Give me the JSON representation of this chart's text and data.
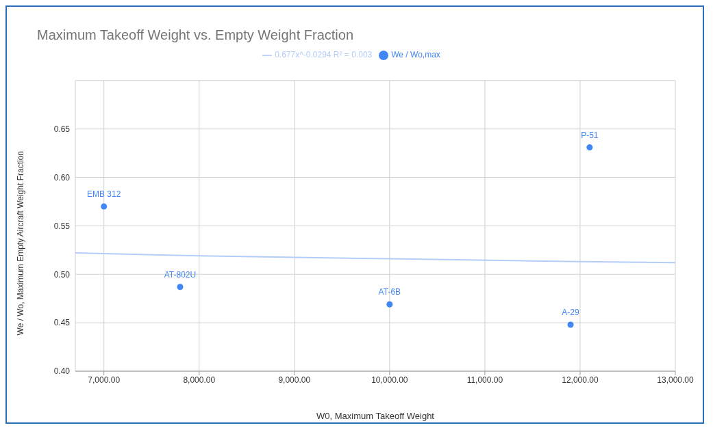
{
  "chart_data": {
    "type": "scatter",
    "title": "Maximum Takeoff Weight vs. Empty Weight Fraction",
    "xlabel": "W0, Maximum Takeoff Weight",
    "ylabel": "We / Wo, Maximum Empty Aircraft Weight Fraction",
    "xlim": [
      6700,
      13000
    ],
    "xticks": [
      {
        "value": 7000,
        "label": "7,000.00"
      },
      {
        "value": 8000,
        "label": "8,000.00"
      },
      {
        "value": 9000,
        "label": "9,000.00"
      },
      {
        "value": 10000,
        "label": "10,000.00"
      },
      {
        "value": 11000,
        "label": "11,000.00"
      },
      {
        "value": 12000,
        "label": "12,000.00"
      },
      {
        "value": 13000,
        "label": "13,000.00"
      }
    ],
    "ylim": [
      0.4,
      0.7
    ],
    "yticks": [
      {
        "value": 0.4,
        "label": "0.40"
      },
      {
        "value": 0.45,
        "label": "0.45"
      },
      {
        "value": 0.5,
        "label": "0.50"
      },
      {
        "value": 0.55,
        "label": "0.55"
      },
      {
        "value": 0.6,
        "label": "0.60"
      },
      {
        "value": 0.65,
        "label": "0.65"
      },
      {
        "value": 0.7,
        "label": null
      }
    ],
    "grid": true,
    "legend": "top",
    "series": [
      {
        "name": "We / Wo,max",
        "marker": "circle",
        "color": "#4285f4",
        "x": [
          7000,
          7800,
          10000,
          11900,
          12100
        ],
        "values": [
          0.57,
          0.487,
          0.469,
          0.448,
          0.631
        ]
      },
      {
        "name": "0.677x^-0.0294 R² = 0.003",
        "type": "line",
        "marker": "none",
        "color": "#b4cdf8",
        "x": [
          6700,
          8000,
          10000,
          12000,
          13000
        ],
        "values": [
          0.522,
          0.519,
          0.516,
          0.513,
          0.512
        ]
      }
    ],
    "annotations": [
      {
        "text": "EMB 312",
        "x": 7000,
        "y": 0.57
      },
      {
        "text": "AT-802U",
        "x": 7800,
        "y": 0.487
      },
      {
        "text": "AT-6B",
        "x": 10000,
        "y": 0.469
      },
      {
        "text": "A-29",
        "x": 11900,
        "y": 0.448
      },
      {
        "text": "P-51",
        "x": 12100,
        "y": 0.631
      }
    ]
  }
}
